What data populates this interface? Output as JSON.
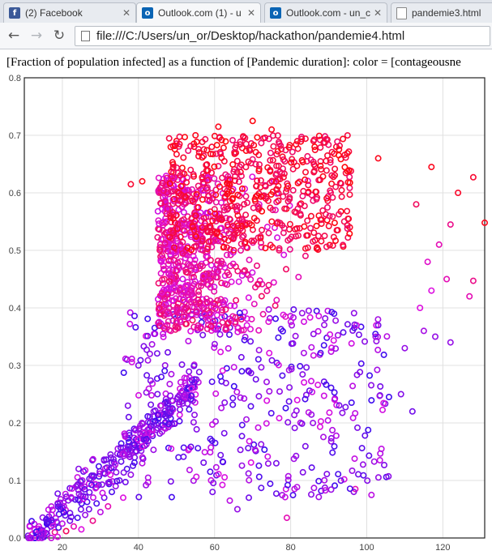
{
  "browser": {
    "tabs": [
      {
        "label": "(2) Facebook",
        "icon": "facebook-icon",
        "active": false
      },
      {
        "label": "Outlook.com (1) - u",
        "icon": "outlook-icon",
        "active": true
      },
      {
        "label": "Outlook.com - un_c",
        "icon": "outlook-icon",
        "active": false
      },
      {
        "label": "pandemie3.html",
        "icon": "page-icon",
        "active": false
      }
    ],
    "address": "file:///C:/Users/un_or/Desktop/hackathon/pandemie4.html"
  },
  "page": {
    "title": "[Fraction of population infected] as a function of [Pandemic duration]: color = [contageousne"
  },
  "colors": {
    "low": "#2a0cf0",
    "mid": "#dd10e0",
    "high": "#ff0808",
    "grid": "#e0e0e0",
    "axis": "#222222"
  },
  "chart_data": {
    "type": "scatter",
    "title": "[Fraction of population infected] as a function of [Pandemic duration]: color = [contageousne",
    "xlabel": "",
    "ylabel": "",
    "xlim": [
      10,
      131
    ],
    "ylim": [
      0,
      0.8
    ],
    "x_ticks": [
      20,
      40,
      60,
      80,
      100,
      120
    ],
    "y_ticks": [
      "0.0",
      "0.1",
      "0.2",
      "0.3",
      "0.4",
      "0.5",
      "0.6",
      "0.7",
      "0.8"
    ],
    "grid": true,
    "color_encoding": "contageousness: blue (low) -> magenta -> red (high)",
    "points": [
      [
        11,
        0.004,
        0.2
      ],
      [
        12,
        0.006,
        0.6
      ],
      [
        13,
        0.01,
        0.1
      ],
      [
        14,
        0.012,
        0.5
      ],
      [
        15,
        0.008,
        0.9
      ],
      [
        16,
        0.015,
        0.3
      ],
      [
        17,
        0.02,
        0.2
      ],
      [
        18,
        0.01,
        0.7
      ],
      [
        19,
        0.018,
        0.1
      ],
      [
        20,
        0.025,
        0.4
      ],
      [
        21,
        0.012,
        0.8
      ],
      [
        22,
        0.03,
        0.2
      ],
      [
        23,
        0.02,
        0.6
      ],
      [
        24,
        0.035,
        0.1
      ],
      [
        25,
        0.015,
        0.5
      ],
      [
        26,
        0.04,
        0.3
      ],
      [
        27,
        0.05,
        0.2
      ],
      [
        28,
        0.03,
        0.7
      ],
      [
        29,
        0.06,
        0.1
      ],
      [
        30,
        0.045,
        0.4
      ],
      [
        31,
        0.07,
        0.2
      ],
      [
        32,
        0.055,
        0.6
      ],
      [
        33,
        0.08,
        0.1
      ],
      [
        34,
        0.09,
        0.3
      ],
      [
        35,
        0.1,
        0.2
      ],
      [
        36,
        0.07,
        0.5
      ],
      [
        37,
        0.12,
        0.1
      ],
      [
        38,
        0.11,
        0.3
      ],
      [
        39,
        0.14,
        0.2
      ],
      [
        40,
        0.16,
        0.1
      ],
      [
        41,
        0.13,
        0.4
      ],
      [
        42,
        0.18,
        0.2
      ],
      [
        43,
        0.2,
        0.1
      ],
      [
        44,
        0.22,
        0.3
      ],
      [
        45,
        0.25,
        0.2
      ],
      [
        46,
        0.28,
        0.1
      ],
      [
        47,
        0.3,
        0.3
      ],
      [
        37,
        0.31,
        0.2
      ],
      [
        40,
        0.3,
        0.25
      ],
      [
        43,
        0.32,
        0.3
      ],
      [
        38,
        0.615,
        0.9
      ],
      [
        41,
        0.62,
        0.95
      ],
      [
        46,
        0.6,
        0.9
      ],
      [
        50,
        0.69,
        1.0
      ],
      [
        55,
        0.7,
        0.95
      ],
      [
        61,
        0.715,
        0.95
      ],
      [
        70,
        0.725,
        0.98
      ],
      [
        75,
        0.71,
        0.95
      ],
      [
        86,
        0.69,
        0.9
      ],
      [
        92,
        0.68,
        0.92
      ],
      [
        103,
        0.66,
        0.95
      ],
      [
        117,
        0.645,
        0.95
      ],
      [
        128,
        0.627,
        0.9
      ],
      [
        124,
        0.6,
        0.92
      ],
      [
        131,
        0.548,
        0.95
      ],
      [
        113,
        0.58,
        0.8
      ],
      [
        122,
        0.545,
        0.7
      ],
      [
        119,
        0.51,
        0.6
      ],
      [
        116,
        0.48,
        0.55
      ],
      [
        121,
        0.45,
        0.6
      ],
      [
        128,
        0.447,
        0.7
      ],
      [
        127,
        0.42,
        0.6
      ],
      [
        117,
        0.43,
        0.5
      ],
      [
        114,
        0.4,
        0.5
      ],
      [
        118,
        0.35,
        0.3
      ],
      [
        122,
        0.34,
        0.3
      ],
      [
        115,
        0.36,
        0.35
      ],
      [
        110,
        0.33,
        0.3
      ],
      [
        112,
        0.22,
        0.2
      ],
      [
        109,
        0.25,
        0.25
      ],
      [
        97,
        0.085,
        0.6
      ],
      [
        79,
        0.035,
        0.6
      ],
      [
        66,
        0.05,
        0.3
      ],
      [
        64,
        0.065,
        0.4
      ],
      [
        69,
        0.07,
        0.2
      ]
    ]
  }
}
